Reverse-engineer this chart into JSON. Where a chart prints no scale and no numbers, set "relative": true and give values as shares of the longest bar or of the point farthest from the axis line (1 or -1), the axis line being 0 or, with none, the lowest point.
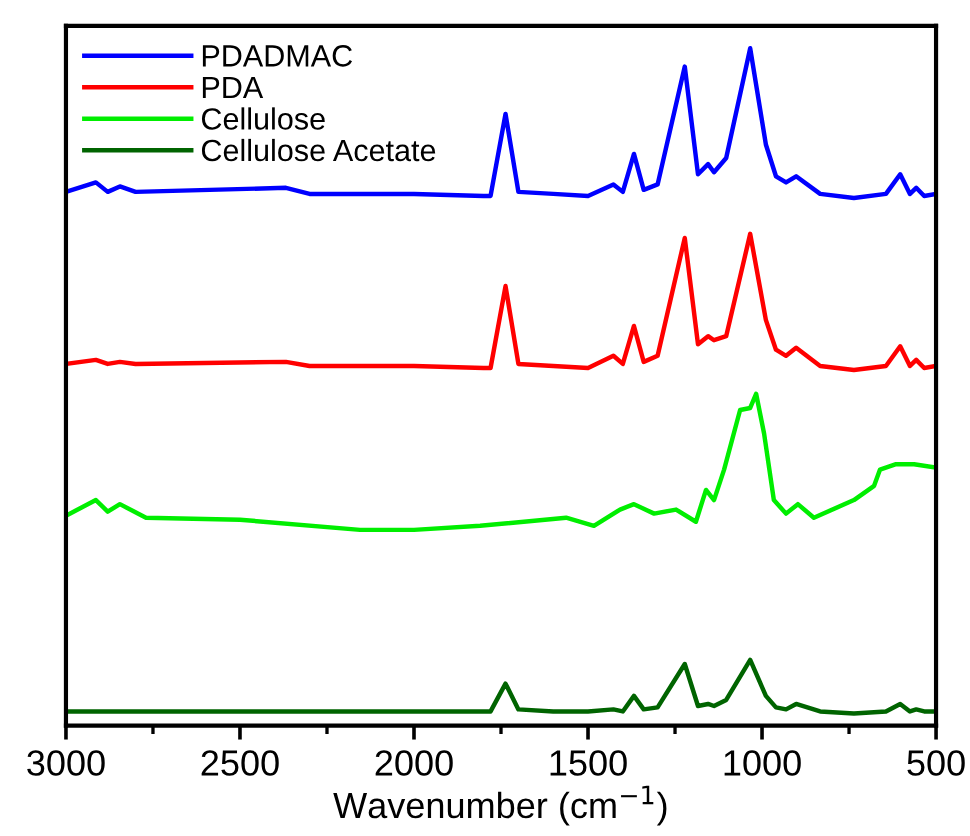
{
  "chart_data": {
    "type": "line",
    "xlabel": "Wavenumber (cm$^{−1}$)",
    "relative": true,
    "x": [
      3000,
      2914,
      2880,
      2845,
      2800,
      2368,
      2300,
      2000,
      1800,
      1780,
      1737,
      1700,
      1600,
      1500,
      1427,
      1400,
      1368,
      1340,
      1300,
      1222,
      1184,
      1155,
      1138,
      1103,
      1034,
      989,
      960,
      931,
      902,
      833,
      736,
      644,
      603,
      575,
      557,
      534,
      500
    ],
    "xlim": [
      3000,
      500
    ],
    "xticks": [
      3000,
      {
        "value": 2750,
        "label": null
      },
      2500,
      {
        "value": 2250,
        "label": null
      },
      2000,
      {
        "value": 1750,
        "label": null
      },
      1500,
      {
        "value": 1250,
        "label": null
      },
      1000,
      {
        "value": 750,
        "label": null
      },
      500
    ],
    "legend": "top left",
    "grid": false,
    "series": [
      {
        "name": "PDADMAC",
        "color": "#0000ff",
        "values": [
          0.788,
          0.802,
          0.788,
          0.796,
          0.788,
          0.794,
          0.785,
          0.785,
          0.782,
          0.782,
          0.903,
          0.788,
          0.785,
          0.782,
          0.799,
          0.788,
          0.844,
          0.791,
          0.799,
          0.973,
          0.814,
          0.829,
          0.817,
          0.838,
          1.0,
          0.858,
          0.811,
          0.802,
          0.811,
          0.785,
          0.779,
          0.785,
          0.814,
          0.785,
          0.794,
          0.782,
          0.785
        ]
      },
      {
        "name": "PDA",
        "color": "#ff0000",
        "values": [
          0.534,
          0.54,
          0.534,
          0.537,
          0.534,
          0.537,
          0.531,
          0.531,
          0.528,
          0.528,
          0.649,
          0.534,
          0.531,
          0.528,
          0.546,
          0.534,
          0.59,
          0.537,
          0.546,
          0.72,
          0.563,
          0.575,
          0.569,
          0.575,
          0.726,
          0.599,
          0.555,
          0.546,
          0.558,
          0.531,
          0.525,
          0.531,
          0.56,
          0.531,
          0.54,
          0.528,
          0.531
        ]
      },
      {
        "name": "Cellulose",
        "color": "#00ee00",
        "x": [
          3000,
          2914,
          2880,
          2845,
          2770,
          2500,
          2155,
          2000,
          1810,
          1563,
          1483,
          1408,
          1368,
          1310,
          1247,
          1190,
          1161,
          1138,
          1109,
          1063,
          1034,
          1017,
          994,
          966,
          931,
          897,
          851,
          736,
          678,
          661,
          615,
          563,
          500
        ],
        "values": [
          0.31,
          0.333,
          0.316,
          0.327,
          0.307,
          0.304,
          0.289,
          0.289,
          0.295,
          0.307,
          0.295,
          0.319,
          0.327,
          0.313,
          0.319,
          0.301,
          0.348,
          0.333,
          0.378,
          0.466,
          0.469,
          0.49,
          0.431,
          0.333,
          0.313,
          0.327,
          0.307,
          0.333,
          0.354,
          0.378,
          0.386,
          0.386,
          0.381
        ]
      },
      {
        "name": "Cellulose Acetate",
        "color": "#006400",
        "values": [
          0.021,
          0.021,
          0.021,
          0.021,
          0.021,
          0.021,
          0.021,
          0.021,
          0.021,
          0.021,
          0.062,
          0.024,
          0.021,
          0.021,
          0.024,
          0.021,
          0.044,
          0.024,
          0.027,
          0.091,
          0.029,
          0.032,
          0.029,
          0.038,
          0.097,
          0.044,
          0.027,
          0.024,
          0.032,
          0.021,
          0.018,
          0.021,
          0.032,
          0.021,
          0.024,
          0.021,
          0.021
        ]
      }
    ]
  }
}
